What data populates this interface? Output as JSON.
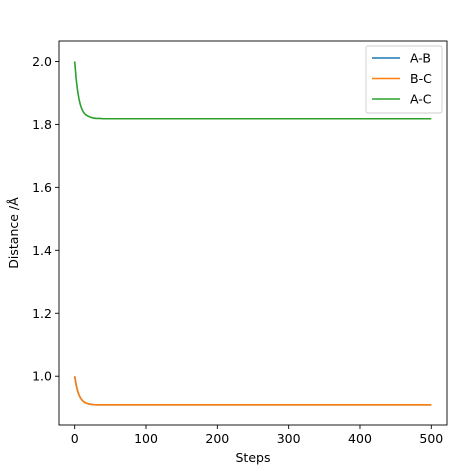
{
  "chart_data": {
    "type": "line",
    "title": "",
    "xlabel": "Steps",
    "ylabel": "Distance /Å",
    "xlim": [
      -22,
      522
    ],
    "ylim": [
      0.845,
      2.065
    ],
    "xticks": [
      0,
      100,
      200,
      300,
      400,
      500
    ],
    "yticks": [
      1.0,
      1.2,
      1.4,
      1.6,
      1.8,
      2.0
    ],
    "ytick_labels": [
      "1.0",
      "1.2",
      "1.4",
      "1.6",
      "1.8",
      "2.0"
    ],
    "grid": false,
    "legend_position": "top-right",
    "x": [
      0,
      2,
      4,
      6,
      8,
      10,
      12,
      14,
      16,
      18,
      20,
      22,
      25,
      30,
      35,
      40,
      50,
      60,
      80,
      100,
      150,
      200,
      250,
      300,
      350,
      400,
      450,
      500
    ],
    "series": [
      {
        "name": "A-B",
        "color": "#1f77b4",
        "values": [
          1.0,
          0.973,
          0.954,
          0.941,
          0.931,
          0.925,
          0.92,
          0.917,
          0.915,
          0.913,
          0.912,
          0.911,
          0.91,
          0.909,
          0.909,
          0.909,
          0.909,
          0.909,
          0.909,
          0.909,
          0.909,
          0.909,
          0.909,
          0.909,
          0.909,
          0.909,
          0.909,
          0.909
        ]
      },
      {
        "name": "B-C",
        "color": "#ff7f0e",
        "values": [
          1.0,
          0.973,
          0.954,
          0.941,
          0.931,
          0.925,
          0.92,
          0.917,
          0.915,
          0.913,
          0.912,
          0.911,
          0.91,
          0.909,
          0.909,
          0.909,
          0.909,
          0.909,
          0.909,
          0.909,
          0.909,
          0.909,
          0.909,
          0.909,
          0.909,
          0.909,
          0.909,
          0.909
        ]
      },
      {
        "name": "A-C",
        "color": "#2ca02c",
        "values": [
          2.0,
          1.946,
          1.908,
          1.881,
          1.862,
          1.849,
          1.84,
          1.834,
          1.83,
          1.827,
          1.825,
          1.823,
          1.821,
          1.819,
          1.819,
          1.818,
          1.818,
          1.818,
          1.818,
          1.818,
          1.818,
          1.818,
          1.818,
          1.818,
          1.818,
          1.818,
          1.818,
          1.818
        ]
      }
    ]
  }
}
